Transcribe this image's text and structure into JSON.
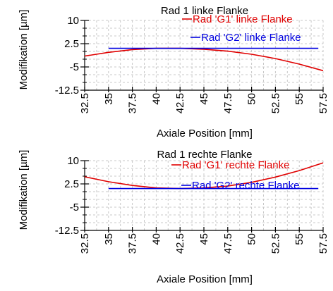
{
  "chart_data": [
    {
      "type": "line",
      "title": "Rad 1 linke Flanke",
      "xlabel": "Axiale Position [mm]",
      "ylabel": "Modifikation [µm]",
      "xlim": [
        32.5,
        57.5
      ],
      "ylim": [
        -12.5,
        10
      ],
      "x_ticks": [
        "32.5",
        "35",
        "37.5",
        "40",
        "42.5",
        "45",
        "47.5",
        "50",
        "52.5",
        "55",
        "57.5"
      ],
      "y_ticks": [
        "10",
        "2.5",
        "-5",
        "-12.5"
      ],
      "grid": true,
      "legend": "top-right",
      "series": [
        {
          "name": "Rad 'G1' linke Flanke",
          "color": "#e00000",
          "x": [
            32.5,
            35,
            37.5,
            40,
            42.5,
            45,
            47.5,
            50,
            52.5,
            55,
            57.5
          ],
          "y": [
            -1.5,
            -0.3,
            0.6,
            1.0,
            1.0,
            0.7,
            0.1,
            -0.9,
            -2.3,
            -4.1,
            -6.2
          ]
        },
        {
          "name": "Rad 'G2' linke Flanke",
          "color": "#0000e0",
          "x": [
            35,
            57
          ],
          "y": [
            1.0,
            1.0
          ]
        }
      ]
    },
    {
      "type": "line",
      "title": "Rad 1 rechte Flanke",
      "xlabel": "Axiale Position [mm]",
      "ylabel": "Modifikation [µm]",
      "xlim": [
        32.5,
        57.5
      ],
      "ylim": [
        -12.5,
        10
      ],
      "x_ticks": [
        "32.5",
        "35",
        "37.5",
        "40",
        "42.5",
        "45",
        "47.5",
        "50",
        "52.5",
        "55",
        "57.5"
      ],
      "y_ticks": [
        "10",
        "2.5",
        "-5",
        "-12.5"
      ],
      "grid": true,
      "legend": "top-right",
      "series": [
        {
          "name": "Rad 'G1' rechte Flanke",
          "color": "#e00000",
          "x": [
            32.5,
            35,
            37.5,
            40,
            42.5,
            45,
            47.5,
            50,
            52.5,
            55,
            57.5
          ],
          "y": [
            4.8,
            3.2,
            2.0,
            1.2,
            1.0,
            1.2,
            1.8,
            3.0,
            4.7,
            6.8,
            9.3
          ]
        },
        {
          "name": "Rad 'G2' rechte Flanke",
          "color": "#0000e0",
          "x": [
            35,
            57
          ],
          "y": [
            1.0,
            1.0
          ]
        }
      ]
    }
  ]
}
